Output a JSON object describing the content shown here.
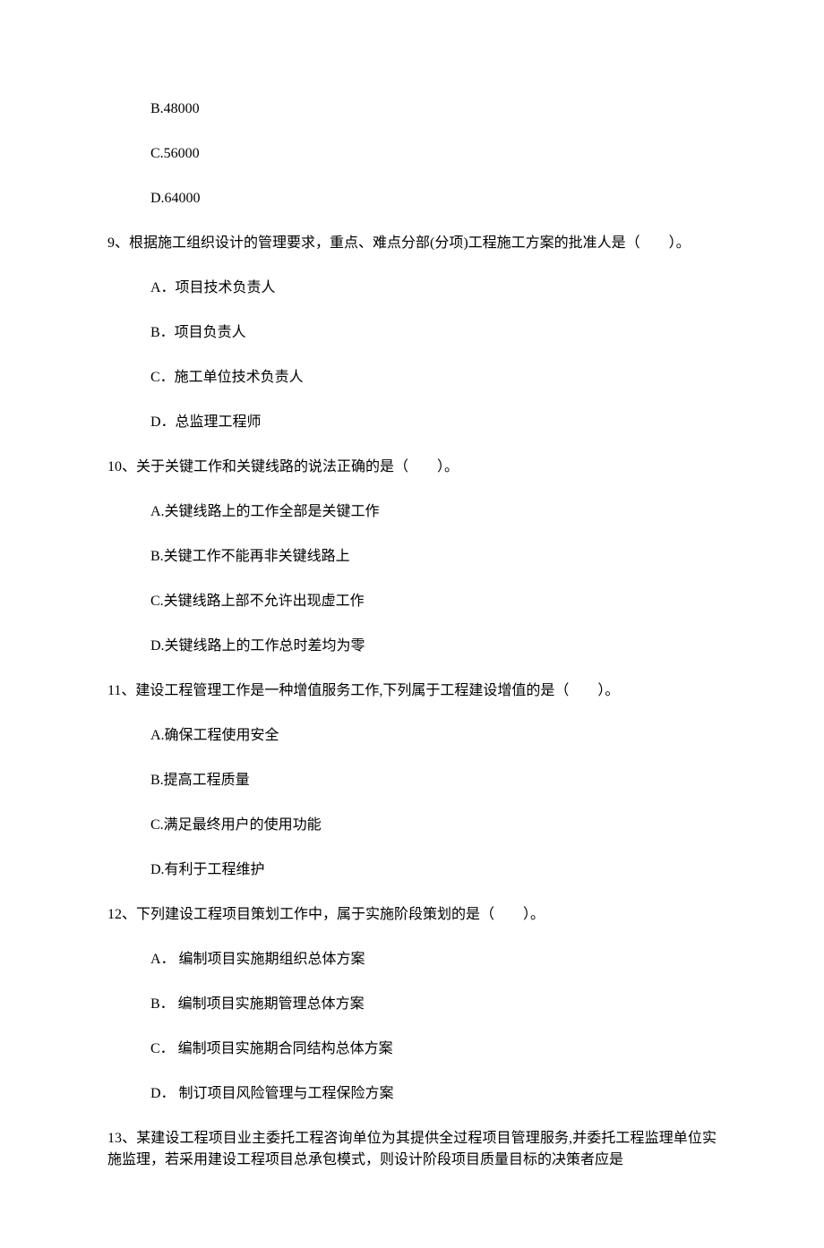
{
  "q8_continued": {
    "options": {
      "B": "B.48000",
      "C": "C.56000",
      "D": "D.64000"
    }
  },
  "q9": {
    "text": "9、根据施工组织设计的管理要求，重点、难点分部(分项)工程施工方案的批准人是（　　）。",
    "options": {
      "A": "A．项目技术负责人",
      "B": "B．项目负责人",
      "C": "C．施工单位技术负责人",
      "D": "D．总监理工程师"
    }
  },
  "q10": {
    "text": "10、关于关键工作和关键线路的说法正确的是（　　）。",
    "options": {
      "A": "A.关键线路上的工作全部是关键工作",
      "B": "B.关键工作不能再非关键线路上",
      "C": "C.关键线路上部不允许出现虚工作",
      "D": "D.关键线路上的工作总时差均为零"
    }
  },
  "q11": {
    "text": "11、建设工程管理工作是一种增值服务工作,下列属于工程建设增值的是（　　）。",
    "options": {
      "A": "A.确保工程使用安全",
      "B": "B.提高工程质量",
      "C": "C.满足最终用户的使用功能",
      "D": "D.有利于工程维护"
    }
  },
  "q12": {
    "text": "12、下列建设工程项目策划工作中，属于实施阶段策划的是（　　）。",
    "options": {
      "A": "A． 编制项目实施期组织总体方案",
      "B": "B． 编制项目实施期管理总体方案",
      "C": "C． 编制项目实施期合同结构总体方案",
      "D": "D． 制订项目风险管理与工程保险方案"
    }
  },
  "q13": {
    "text": "13、某建设工程项目业主委托工程咨询单位为其提供全过程项目管理服务,并委托工程监理单位实施监理，若采用建设工程项目总承包模式，则设计阶段项目质量目标的决策者应是"
  }
}
